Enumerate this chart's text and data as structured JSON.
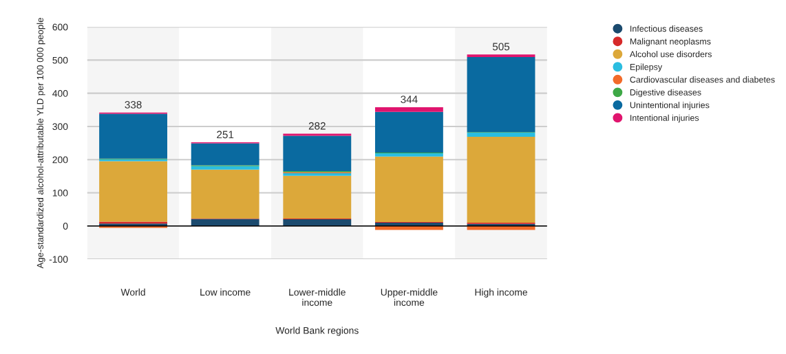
{
  "chart_data": {
    "type": "bar",
    "stacked": true,
    "xlabel": "World Bank regions",
    "ylabel": "Age-standardized alcohol-attributable YLD per 100 000 people",
    "categories": [
      "World",
      "Low income",
      "Lower-middle\nincome",
      "Upper-middle\nincome",
      "High income"
    ],
    "series": [
      {
        "name": "Infectious diseases",
        "color": "#1b4a6e",
        "values": [
          7,
          21,
          20,
          10,
          6
        ]
      },
      {
        "name": "Malignant neoplasms",
        "color": "#d62a2a",
        "values": [
          6,
          1,
          2,
          2,
          4
        ]
      },
      {
        "name": "Alcohol use disorders",
        "color": "#dca83a",
        "values": [
          182,
          148,
          129,
          197,
          259
        ]
      },
      {
        "name": "Epilepsy",
        "color": "#2bbde0",
        "values": [
          6,
          10,
          8,
          10,
          12
        ]
      },
      {
        "name": "Cardiovascular diseases and diabetes",
        "color": "#f26b2a",
        "values": [
          -6,
          0,
          3,
          -12,
          -12
        ]
      },
      {
        "name": "Digestive diseases",
        "color": "#3ea846",
        "values": [
          2,
          3,
          3,
          2,
          2
        ]
      },
      {
        "name": "Unintentional injuries",
        "color": "#0a6aa0",
        "values": [
          135,
          66,
          107,
          123,
          226
        ]
      },
      {
        "name": "Intentional injuries",
        "color": "#e0156e",
        "values": [
          4,
          3,
          6,
          14,
          8
        ]
      }
    ],
    "totals": [
      "338",
      "251",
      "282",
      "344",
      "505"
    ],
    "ylim": [
      -100,
      600
    ],
    "yticks": [
      -100,
      0,
      100,
      200,
      300,
      400,
      500,
      600
    ],
    "grid": "y",
    "legend": "right",
    "marker": "circle"
  }
}
